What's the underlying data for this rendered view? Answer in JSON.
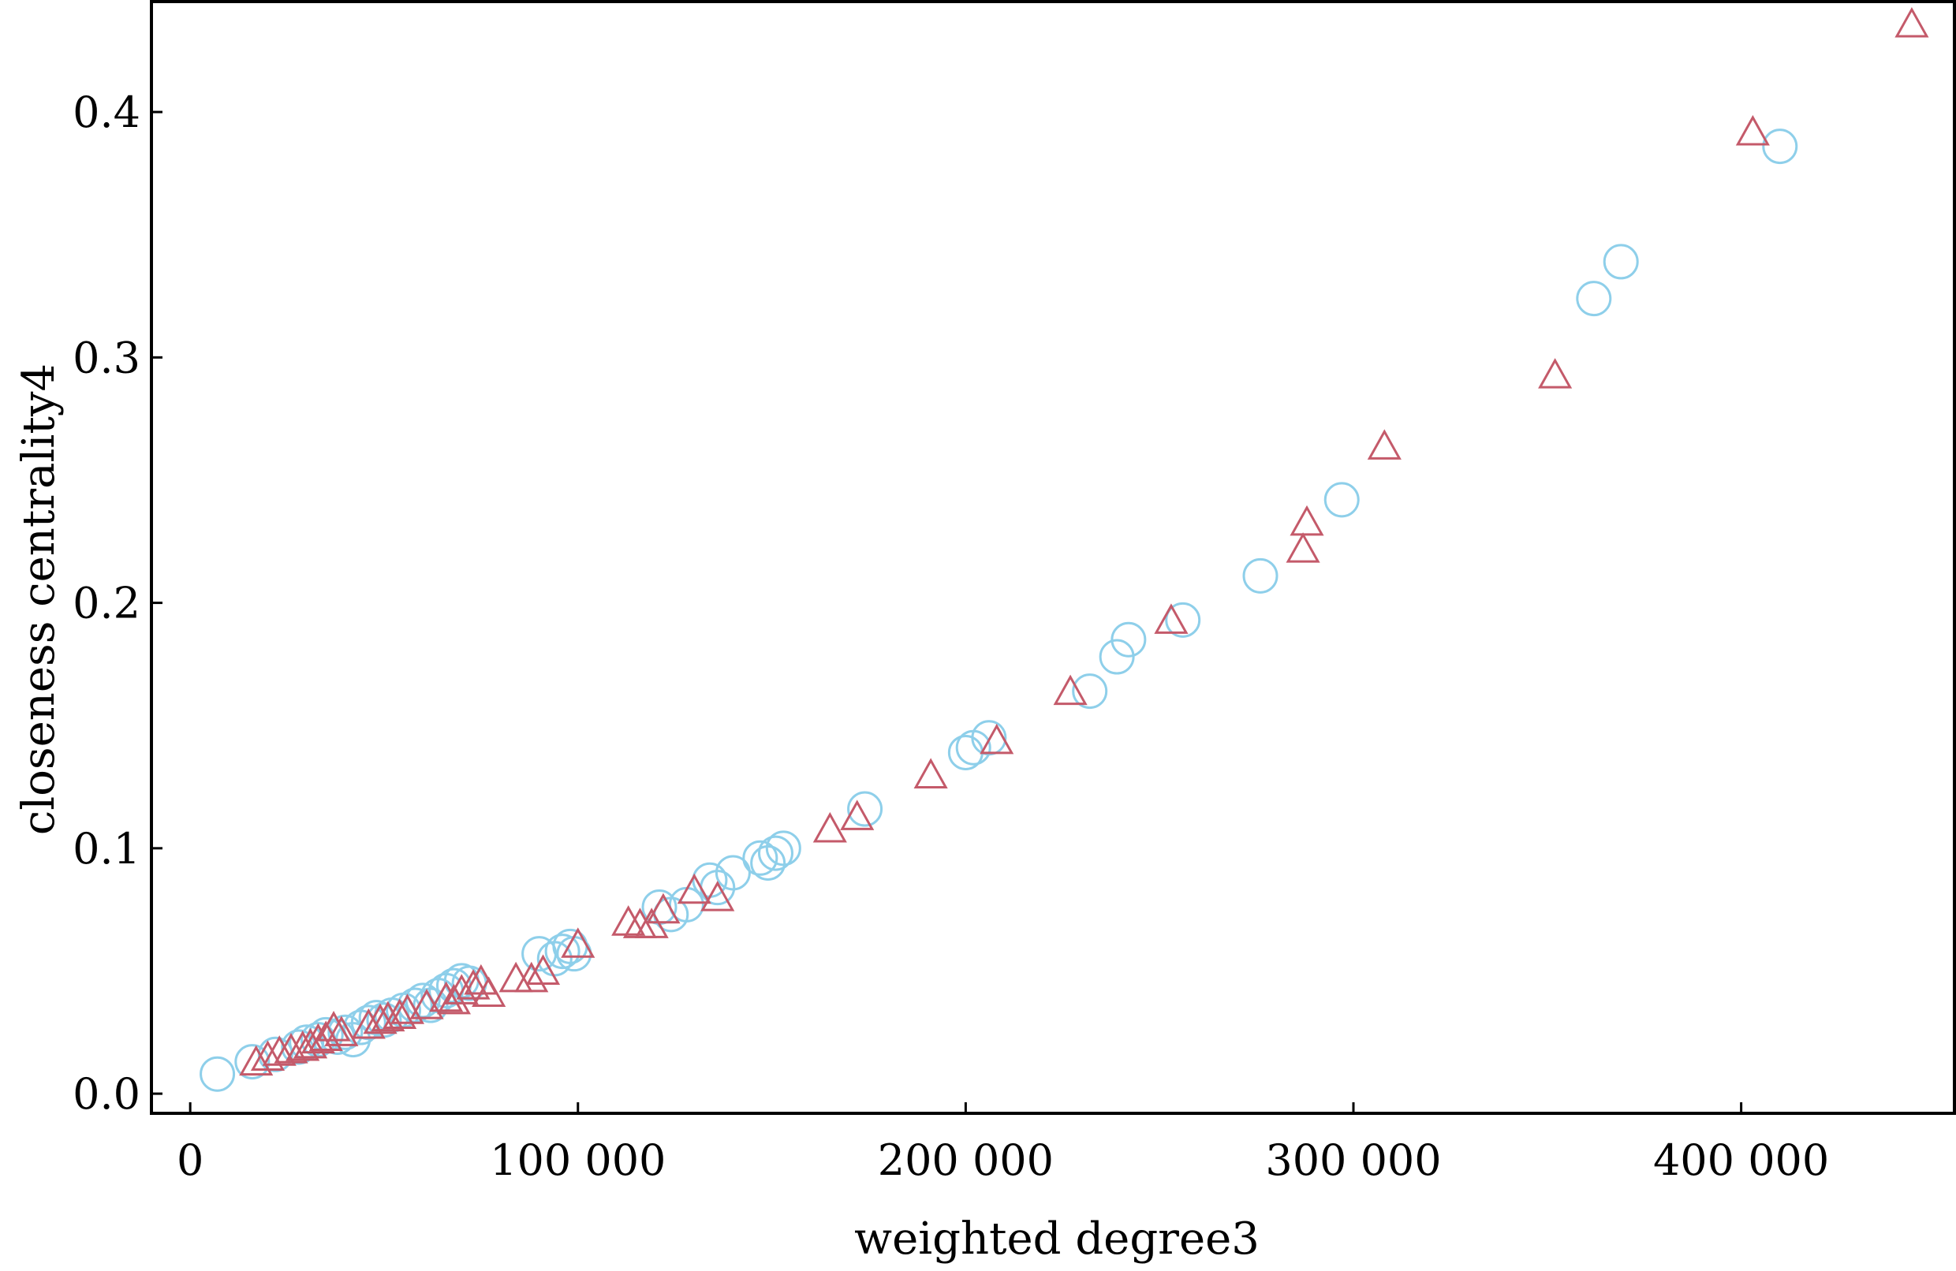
{
  "chart_data": {
    "type": "scatter",
    "title": "",
    "xlabel": "weighted degree3",
    "ylabel": "closeness centrality4",
    "xlim": [
      -10000,
      455000
    ],
    "ylim": [
      -0.008,
      0.445
    ],
    "x_ticks": [
      0,
      100000,
      200000,
      300000,
      400000
    ],
    "x_tick_labels": [
      "0",
      "100 000",
      "200 000",
      "300 000",
      "400 000"
    ],
    "y_ticks": [
      0.0,
      0.1,
      0.2,
      0.3,
      0.4
    ],
    "y_tick_labels": [
      "0.0",
      "0.1",
      "0.2",
      "0.3",
      "0.4"
    ],
    "grid": false,
    "legend": "none",
    "series": [
      {
        "marker": "circle",
        "color": "#8ecfea",
        "points": [
          [
            7000,
            0.008
          ],
          [
            16000,
            0.013
          ],
          [
            22000,
            0.016
          ],
          [
            28000,
            0.019
          ],
          [
            30000,
            0.021
          ],
          [
            33000,
            0.022
          ],
          [
            35000,
            0.024
          ],
          [
            38000,
            0.023
          ],
          [
            40000,
            0.025
          ],
          [
            42000,
            0.022
          ],
          [
            44000,
            0.027
          ],
          [
            46000,
            0.029
          ],
          [
            48000,
            0.031
          ],
          [
            50000,
            0.03
          ],
          [
            52000,
            0.032
          ],
          [
            55000,
            0.034
          ],
          [
            58000,
            0.036
          ],
          [
            60000,
            0.038
          ],
          [
            62000,
            0.036
          ],
          [
            64000,
            0.04
          ],
          [
            66000,
            0.042
          ],
          [
            68000,
            0.044
          ],
          [
            70000,
            0.046
          ],
          [
            72000,
            0.045
          ],
          [
            90000,
            0.057
          ],
          [
            94000,
            0.055
          ],
          [
            96000,
            0.058
          ],
          [
            98000,
            0.06
          ],
          [
            99000,
            0.057
          ],
          [
            121000,
            0.076
          ],
          [
            124000,
            0.073
          ],
          [
            128000,
            0.077
          ],
          [
            134000,
            0.087
          ],
          [
            136000,
            0.084
          ],
          [
            140000,
            0.09
          ],
          [
            147000,
            0.096
          ],
          [
            149000,
            0.094
          ],
          [
            151000,
            0.098
          ],
          [
            153000,
            0.1
          ],
          [
            174000,
            0.116
          ],
          [
            200000,
            0.139
          ],
          [
            202000,
            0.141
          ],
          [
            206000,
            0.145
          ],
          [
            232000,
            0.164
          ],
          [
            239000,
            0.178
          ],
          [
            242000,
            0.185
          ],
          [
            256000,
            0.193
          ],
          [
            276000,
            0.211
          ],
          [
            297000,
            0.242
          ],
          [
            362000,
            0.324
          ],
          [
            369000,
            0.339
          ],
          [
            410000,
            0.386
          ]
        ]
      },
      {
        "marker": "triangle",
        "color": "#c45a6a",
        "points": [
          [
            17000,
            0.012
          ],
          [
            20000,
            0.014
          ],
          [
            23000,
            0.016
          ],
          [
            26000,
            0.017
          ],
          [
            29000,
            0.018
          ],
          [
            31000,
            0.019
          ],
          [
            33000,
            0.021
          ],
          [
            35000,
            0.022
          ],
          [
            37000,
            0.026
          ],
          [
            39000,
            0.024
          ],
          [
            46000,
            0.027
          ],
          [
            49000,
            0.029
          ],
          [
            51000,
            0.03
          ],
          [
            54000,
            0.031
          ],
          [
            56000,
            0.033
          ],
          [
            61000,
            0.035
          ],
          [
            66000,
            0.038
          ],
          [
            68000,
            0.037
          ],
          [
            70000,
            0.041
          ],
          [
            73000,
            0.043
          ],
          [
            75000,
            0.045
          ],
          [
            77000,
            0.04
          ],
          [
            84000,
            0.046
          ],
          [
            88000,
            0.046
          ],
          [
            91000,
            0.049
          ],
          [
            100000,
            0.06
          ],
          [
            113000,
            0.069
          ],
          [
            116000,
            0.068
          ],
          [
            119000,
            0.068
          ],
          [
            122000,
            0.074
          ],
          [
            130000,
            0.082
          ],
          [
            136000,
            0.079
          ],
          [
            165000,
            0.107
          ],
          [
            172000,
            0.112
          ],
          [
            191000,
            0.129
          ],
          [
            208000,
            0.143
          ],
          [
            227000,
            0.163
          ],
          [
            253000,
            0.192
          ],
          [
            287000,
            0.221
          ],
          [
            288000,
            0.232
          ],
          [
            308000,
            0.263
          ],
          [
            352000,
            0.292
          ],
          [
            403000,
            0.391
          ],
          [
            444000,
            0.435
          ]
        ]
      }
    ]
  }
}
